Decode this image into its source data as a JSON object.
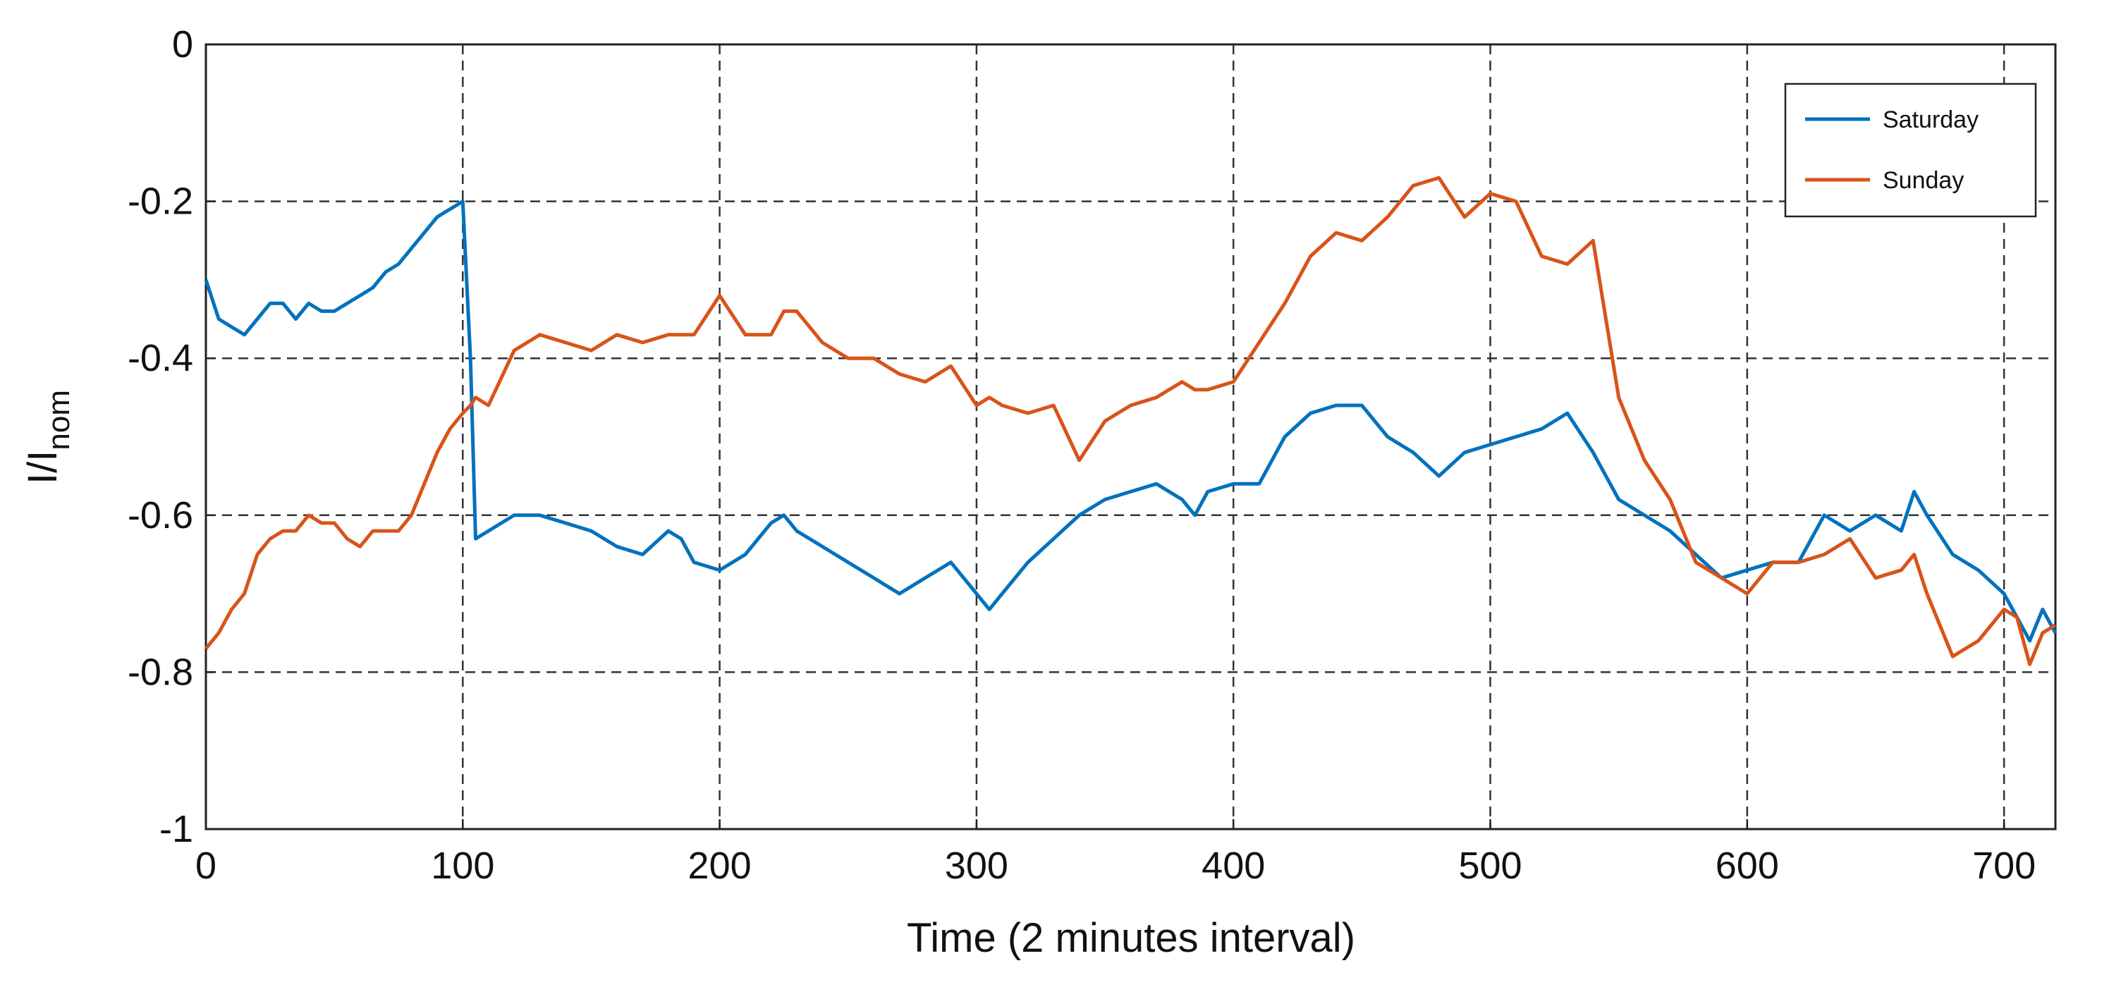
{
  "chart_data": {
    "type": "line",
    "xlabel": "Time (2 minutes interval)",
    "ylabel": "I/I",
    "ylabel_subscript": "nom",
    "x": [
      0,
      5,
      10,
      15,
      20,
      25,
      30,
      35,
      40,
      45,
      50,
      55,
      60,
      65,
      70,
      75,
      80,
      85,
      90,
      95,
      100,
      103,
      105,
      110,
      120,
      130,
      140,
      150,
      160,
      170,
      180,
      185,
      190,
      200,
      210,
      220,
      225,
      230,
      240,
      250,
      260,
      270,
      280,
      290,
      300,
      305,
      310,
      320,
      330,
      340,
      350,
      360,
      370,
      380,
      385,
      390,
      400,
      410,
      420,
      430,
      440,
      450,
      460,
      470,
      480,
      490,
      500,
      510,
      520,
      530,
      540,
      550,
      560,
      570,
      580,
      590,
      600,
      610,
      620,
      630,
      640,
      650,
      660,
      665,
      670,
      680,
      690,
      700,
      705,
      710,
      715,
      720
    ],
    "series": [
      {
        "name": "Saturday",
        "color": "#0072bd",
        "values": [
          -0.3,
          -0.35,
          -0.36,
          -0.37,
          -0.35,
          -0.33,
          -0.33,
          -0.35,
          -0.33,
          -0.34,
          -0.34,
          -0.33,
          -0.32,
          -0.31,
          -0.29,
          -0.28,
          -0.26,
          -0.24,
          -0.22,
          -0.21,
          -0.2,
          -0.4,
          -0.63,
          -0.62,
          -0.6,
          -0.6,
          -0.61,
          -0.62,
          -0.64,
          -0.65,
          -0.62,
          -0.63,
          -0.66,
          -0.67,
          -0.65,
          -0.61,
          -0.6,
          -0.62,
          -0.64,
          -0.66,
          -0.68,
          -0.7,
          -0.68,
          -0.66,
          -0.7,
          -0.72,
          -0.7,
          -0.66,
          -0.63,
          -0.6,
          -0.58,
          -0.57,
          -0.56,
          -0.58,
          -0.6,
          -0.57,
          -0.56,
          -0.56,
          -0.5,
          -0.47,
          -0.46,
          -0.46,
          -0.5,
          -0.52,
          -0.55,
          -0.52,
          -0.51,
          -0.5,
          -0.49,
          -0.47,
          -0.52,
          -0.58,
          -0.6,
          -0.62,
          -0.65,
          -0.68,
          -0.67,
          -0.66,
          -0.66,
          -0.6,
          -0.62,
          -0.6,
          -0.62,
          -0.57,
          -0.6,
          -0.65,
          -0.67,
          -0.7,
          -0.73,
          -0.76,
          -0.72,
          -0.75
        ]
      },
      {
        "name": "Sunday",
        "color": "#d95319",
        "values": [
          -0.77,
          -0.75,
          -0.72,
          -0.7,
          -0.65,
          -0.63,
          -0.62,
          -0.62,
          -0.6,
          -0.61,
          -0.61,
          -0.63,
          -0.64,
          -0.62,
          -0.62,
          -0.62,
          -0.6,
          -0.56,
          -0.52,
          -0.49,
          -0.47,
          -0.46,
          -0.45,
          -0.46,
          -0.39,
          -0.37,
          -0.38,
          -0.39,
          -0.37,
          -0.38,
          -0.37,
          -0.37,
          -0.37,
          -0.32,
          -0.37,
          -0.37,
          -0.34,
          -0.34,
          -0.38,
          -0.4,
          -0.4,
          -0.42,
          -0.43,
          -0.41,
          -0.46,
          -0.45,
          -0.46,
          -0.47,
          -0.46,
          -0.53,
          -0.48,
          -0.46,
          -0.45,
          -0.43,
          -0.44,
          -0.44,
          -0.43,
          -0.38,
          -0.33,
          -0.27,
          -0.24,
          -0.25,
          -0.22,
          -0.18,
          -0.17,
          -0.22,
          -0.19,
          -0.2,
          -0.27,
          -0.28,
          -0.25,
          -0.45,
          -0.53,
          -0.58,
          -0.66,
          -0.68,
          -0.7,
          -0.66,
          -0.66,
          -0.65,
          -0.63,
          -0.68,
          -0.67,
          -0.65,
          -0.7,
          -0.78,
          -0.76,
          -0.72,
          -0.73,
          -0.79,
          -0.75,
          -0.74
        ]
      }
    ],
    "xlim": [
      0,
      720
    ],
    "xticks": [
      0,
      100,
      200,
      300,
      400,
      500,
      600,
      700
    ],
    "ylim": [
      -1,
      0
    ],
    "yticks": [
      -1,
      -0.8,
      -0.6,
      -0.4,
      -0.2,
      0
    ],
    "grid": true,
    "legend": "upper right"
  }
}
